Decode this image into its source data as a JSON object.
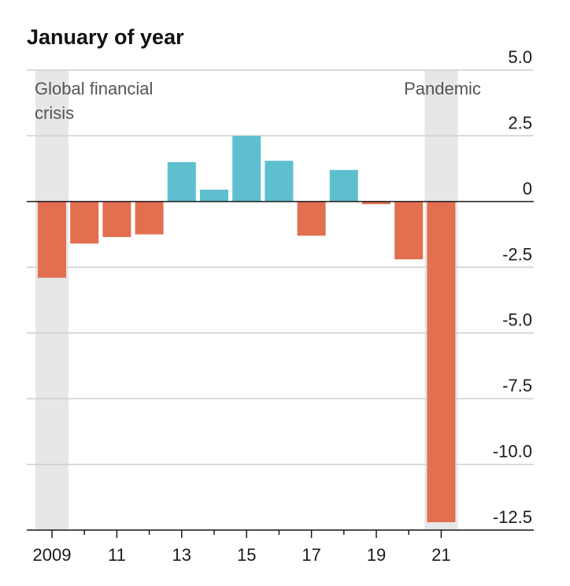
{
  "chart_data": {
    "type": "bar",
    "title": "January of year",
    "xlabel": "",
    "ylabel": "",
    "categories": [
      "2009",
      "2010",
      "2011",
      "2012",
      "2013",
      "2014",
      "2015",
      "2016",
      "2017",
      "2018",
      "2019",
      "2020",
      "2021"
    ],
    "x_tick_labels": [
      "2009",
      "",
      "11",
      "",
      "13",
      "",
      "15",
      "",
      "17",
      "",
      "19",
      "",
      "21"
    ],
    "values": [
      -2.9,
      -1.6,
      -1.35,
      -1.25,
      1.5,
      0.45,
      2.5,
      1.55,
      -1.3,
      1.2,
      -0.1,
      -2.2,
      -12.2
    ],
    "ylim": [
      -12.5,
      5.0
    ],
    "y_ticks": [
      5.0,
      2.5,
      0,
      -2.5,
      -5.0,
      -7.5,
      -10.0,
      -12.5
    ],
    "y_tick_labels": [
      "5.0",
      "2.5",
      "0",
      "-2.5",
      "-5.0",
      "-7.5",
      "-10.0",
      "-12.5"
    ],
    "grid": true,
    "y_axis_position": "right",
    "colors": {
      "positive": "#5ebfcf",
      "negative": "#e26f50",
      "shade": "#e7e7e7",
      "grid": "#cfcfcf",
      "zero_line": "#1a1a1a"
    },
    "shaded_periods": [
      {
        "label_lines": [
          "Global financial",
          "crisis"
        ],
        "category": "2009"
      },
      {
        "label_lines": [
          "Pandemic"
        ],
        "category": "2021"
      }
    ]
  }
}
